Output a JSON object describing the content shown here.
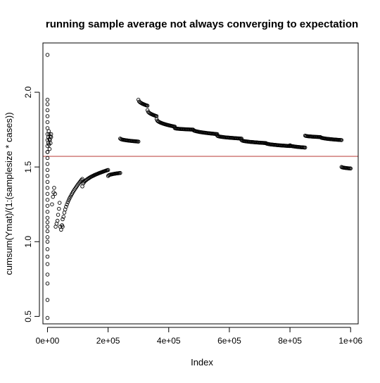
{
  "chart_data": {
    "type": "scatter",
    "title": "running sample average not always converging to expectation",
    "xlabel": "Index",
    "ylabel": "cumsum(Ymat)/(1:(samplesize * cases))",
    "xlim": [
      -15000,
      1025000
    ],
    "ylim": [
      0.45,
      2.33
    ],
    "x_ticks": [
      0,
      200000,
      400000,
      600000,
      800000,
      1000000
    ],
    "x_tick_labels": [
      "0e+00",
      "2e+05",
      "4e+05",
      "6e+05",
      "8e+05",
      "1e+06"
    ],
    "y_ticks": [
      0.5,
      1.0,
      1.5,
      2.0
    ],
    "y_tick_labels": [
      "0.5",
      "1.0",
      "1.5",
      "2.0"
    ],
    "marker": "open-circle",
    "point_color": "#000000",
    "hline": {
      "y": 1.571,
      "color": "#c0504d"
    },
    "series": [
      {
        "points_early": [
          [
            0,
            2.25
          ],
          [
            0,
            0.49
          ],
          [
            0,
            0.61
          ],
          [
            0,
            0.72
          ],
          [
            0,
            0.78
          ],
          [
            0,
            0.85
          ],
          [
            0,
            0.9
          ],
          [
            0,
            0.95
          ],
          [
            0,
            1.0
          ],
          [
            0,
            1.03
          ],
          [
            0,
            1.07
          ],
          [
            0,
            1.1
          ],
          [
            0,
            1.13
          ],
          [
            0,
            1.16
          ],
          [
            0,
            1.2
          ],
          [
            0,
            1.24
          ],
          [
            0,
            1.28
          ],
          [
            0,
            1.32
          ],
          [
            0,
            1.36
          ],
          [
            0,
            1.4
          ],
          [
            0,
            1.44
          ],
          [
            0,
            1.48
          ],
          [
            0,
            1.52
          ],
          [
            0,
            1.56
          ],
          [
            0,
            1.6
          ],
          [
            0,
            1.64
          ],
          [
            0,
            1.68
          ],
          [
            0,
            1.72
          ],
          [
            0,
            1.76
          ],
          [
            0,
            1.8
          ],
          [
            0,
            1.84
          ],
          [
            0,
            1.88
          ],
          [
            0,
            1.92
          ],
          [
            0,
            1.95
          ],
          [
            3000,
            1.7
          ],
          [
            4000,
            1.74
          ],
          [
            5000,
            1.65
          ],
          [
            6000,
            1.72
          ],
          [
            7000,
            1.62
          ],
          [
            8000,
            1.68
          ],
          [
            10000,
            1.66
          ],
          [
            12000,
            1.7
          ],
          [
            15000,
            1.25
          ],
          [
            18000,
            1.3
          ],
          [
            20000,
            1.33
          ],
          [
            22000,
            1.36
          ],
          [
            25000,
            1.32
          ],
          [
            27000,
            1.1
          ],
          [
            30000,
            1.12
          ],
          [
            33000,
            1.14
          ],
          [
            35000,
            1.18
          ],
          [
            38000,
            1.22
          ],
          [
            40000,
            1.26
          ],
          [
            42000,
            1.1
          ],
          [
            45000,
            1.08
          ],
          [
            48000,
            1.11
          ],
          [
            50000,
            1.15
          ]
        ],
        "segments": [
          {
            "x": [
              0,
              12000
            ],
            "y": [
              1.6,
              1.72
            ]
          },
          {
            "x": [
              50000,
              115000
            ],
            "y": [
              1.1,
              1.42
            ]
          },
          {
            "x": [
              115000,
              200000
            ],
            "y": [
              1.37,
              1.48
            ]
          },
          {
            "x": [
              200000,
              240000
            ],
            "y": [
              1.44,
              1.46
            ]
          },
          {
            "x": [
              240000,
              300000
            ],
            "y": [
              1.69,
              1.67
            ]
          },
          {
            "x": [
              300000,
              330000
            ],
            "y": [
              1.95,
              1.91
            ]
          },
          {
            "x": [
              330000,
              360000
            ],
            "y": [
              1.88,
              1.84
            ]
          },
          {
            "x": [
              360000,
              420000
            ],
            "y": [
              1.82,
              1.77
            ]
          },
          {
            "x": [
              420000,
              480000
            ],
            "y": [
              1.76,
              1.75
            ]
          },
          {
            "x": [
              480000,
              560000
            ],
            "y": [
              1.75,
              1.72
            ]
          },
          {
            "x": [
              560000,
              640000
            ],
            "y": [
              1.71,
              1.69
            ]
          },
          {
            "x": [
              640000,
              720000
            ],
            "y": [
              1.68,
              1.66
            ]
          },
          {
            "x": [
              720000,
              800000
            ],
            "y": [
              1.66,
              1.64
            ]
          },
          {
            "x": [
              800000,
              850000
            ],
            "y": [
              1.645,
              1.63
            ]
          },
          {
            "x": [
              850000,
              900000
            ],
            "y": [
              1.71,
              1.7
            ]
          },
          {
            "x": [
              900000,
              970000
            ],
            "y": [
              1.7,
              1.68
            ]
          },
          {
            "x": [
              970000,
              1000000
            ],
            "y": [
              1.5,
              1.49
            ]
          }
        ]
      }
    ]
  }
}
